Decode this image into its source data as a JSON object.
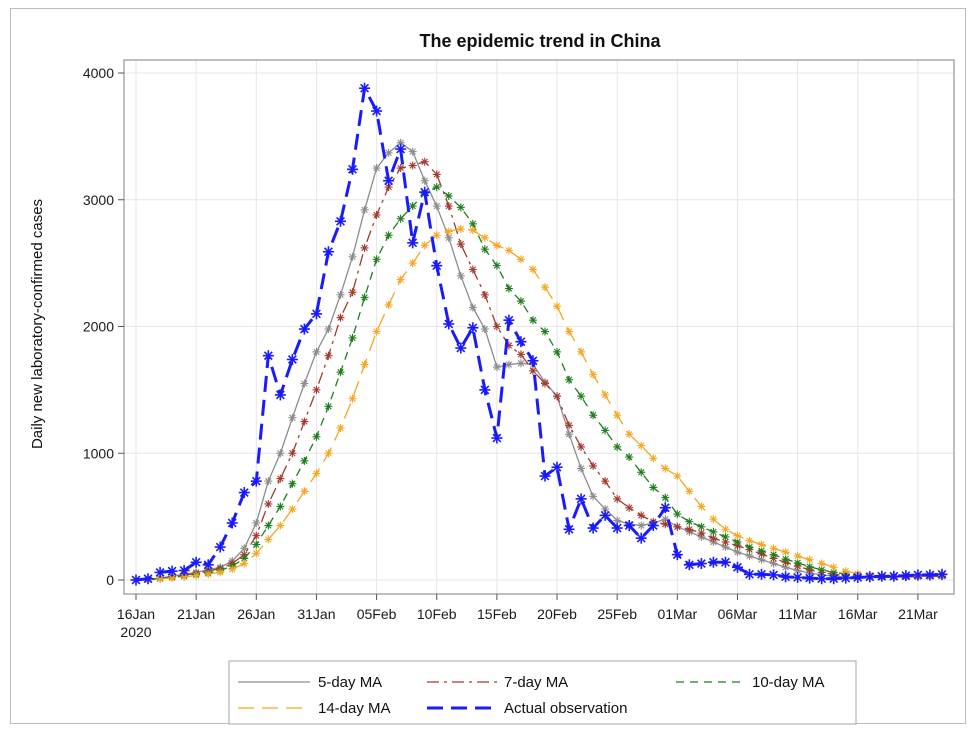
{
  "chart_data": {
    "type": "line",
    "title": "The epidemic trend in China",
    "xlabel": "",
    "ylabel": "Daily new laboratory-confirmed cases",
    "ylim": [
      0,
      4000
    ],
    "xlim": [
      "2020-01-16",
      "2020-03-24"
    ],
    "grid": true,
    "legend_position": "bottom",
    "yticks": [
      0,
      1000,
      2000,
      3000,
      4000
    ],
    "xticks": [
      {
        "date": "2020-01-16",
        "label": "16Jan",
        "sublabel": "2020"
      },
      {
        "date": "2020-01-21",
        "label": "21Jan",
        "sublabel": ""
      },
      {
        "date": "2020-01-26",
        "label": "26Jan",
        "sublabel": ""
      },
      {
        "date": "2020-01-31",
        "label": "31Jan",
        "sublabel": ""
      },
      {
        "date": "2020-02-05",
        "label": "05Feb",
        "sublabel": ""
      },
      {
        "date": "2020-02-10",
        "label": "10Feb",
        "sublabel": ""
      },
      {
        "date": "2020-02-15",
        "label": "15Feb",
        "sublabel": ""
      },
      {
        "date": "2020-02-20",
        "label": "20Feb",
        "sublabel": ""
      },
      {
        "date": "2020-02-25",
        "label": "25Feb",
        "sublabel": ""
      },
      {
        "date": "2020-03-01",
        "label": "01Mar",
        "sublabel": ""
      },
      {
        "date": "2020-03-06",
        "label": "06Mar",
        "sublabel": ""
      },
      {
        "date": "2020-03-11",
        "label": "11Mar",
        "sublabel": ""
      },
      {
        "date": "2020-03-16",
        "label": "16Mar",
        "sublabel": ""
      },
      {
        "date": "2020-03-21",
        "label": "21Mar",
        "sublabel": ""
      }
    ],
    "series": [
      {
        "name": "5-day MA",
        "color": "#8c8c8c",
        "dash": "solid",
        "width": 1.3,
        "marker": "asterisk",
        "x": [
          "2020-01-16",
          "2020-01-17",
          "2020-01-18",
          "2020-01-19",
          "2020-01-20",
          "2020-01-21",
          "2020-01-22",
          "2020-01-23",
          "2020-01-24",
          "2020-01-25",
          "2020-01-26",
          "2020-01-27",
          "2020-01-28",
          "2020-01-29",
          "2020-01-30",
          "2020-01-31",
          "2020-02-01",
          "2020-02-02",
          "2020-02-03",
          "2020-02-04",
          "2020-02-05",
          "2020-02-06",
          "2020-02-07",
          "2020-02-08",
          "2020-02-09",
          "2020-02-10",
          "2020-02-11",
          "2020-02-12",
          "2020-02-13",
          "2020-02-14",
          "2020-02-15",
          "2020-02-16",
          "2020-02-17",
          "2020-02-18",
          "2020-02-19",
          "2020-02-20",
          "2020-02-21",
          "2020-02-22",
          "2020-02-23",
          "2020-02-24",
          "2020-02-25",
          "2020-02-26",
          "2020-02-27",
          "2020-02-28",
          "2020-02-29",
          "2020-03-01",
          "2020-03-02",
          "2020-03-03",
          "2020-03-04",
          "2020-03-05",
          "2020-03-06",
          "2020-03-07",
          "2020-03-08",
          "2020-03-09",
          "2020-03-10",
          "2020-03-11",
          "2020-03-12",
          "2020-03-13",
          "2020-03-14",
          "2020-03-15",
          "2020-03-16",
          "2020-03-17",
          "2020-03-18",
          "2020-03-19",
          "2020-03-20",
          "2020-03-21",
          "2020-03-22",
          "2020-03-23"
        ],
        "y": [
          0,
          5,
          15,
          30,
          45,
          60,
          80,
          100,
          150,
          250,
          450,
          780,
          1000,
          1280,
          1550,
          1800,
          1980,
          2250,
          2550,
          2920,
          3250,
          3370,
          3450,
          3380,
          3150,
          2950,
          2700,
          2400,
          2150,
          1980,
          1680,
          1700,
          1710,
          1700,
          1560,
          1450,
          1150,
          880,
          660,
          560,
          470,
          440,
          430,
          450,
          480,
          420,
          380,
          340,
          300,
          260,
          220,
          190,
          160,
          130,
          100,
          75,
          55,
          40,
          30,
          22,
          18,
          18,
          20,
          22,
          25,
          28,
          30,
          30
        ]
      },
      {
        "name": "7-day MA",
        "color": "#a33a2e",
        "dash": "dashdot",
        "width": 1.3,
        "marker": "asterisk",
        "x": [
          "2020-01-16",
          "2020-01-17",
          "2020-01-18",
          "2020-01-19",
          "2020-01-20",
          "2020-01-21",
          "2020-01-22",
          "2020-01-23",
          "2020-01-24",
          "2020-01-25",
          "2020-01-26",
          "2020-01-27",
          "2020-01-28",
          "2020-01-29",
          "2020-01-30",
          "2020-01-31",
          "2020-02-01",
          "2020-02-02",
          "2020-02-03",
          "2020-02-04",
          "2020-02-05",
          "2020-02-06",
          "2020-02-07",
          "2020-02-08",
          "2020-02-09",
          "2020-02-10",
          "2020-02-11",
          "2020-02-12",
          "2020-02-13",
          "2020-02-14",
          "2020-02-15",
          "2020-02-16",
          "2020-02-17",
          "2020-02-18",
          "2020-02-19",
          "2020-02-20",
          "2020-02-21",
          "2020-02-22",
          "2020-02-23",
          "2020-02-24",
          "2020-02-25",
          "2020-02-26",
          "2020-02-27",
          "2020-02-28",
          "2020-02-29",
          "2020-03-01",
          "2020-03-02",
          "2020-03-03",
          "2020-03-04",
          "2020-03-05",
          "2020-03-06",
          "2020-03-07",
          "2020-03-08",
          "2020-03-09",
          "2020-03-10",
          "2020-03-11",
          "2020-03-12",
          "2020-03-13",
          "2020-03-14",
          "2020-03-15",
          "2020-03-16",
          "2020-03-17",
          "2020-03-18",
          "2020-03-19",
          "2020-03-20",
          "2020-03-21",
          "2020-03-22",
          "2020-03-23"
        ],
        "y": [
          0,
          4,
          12,
          25,
          38,
          52,
          70,
          90,
          130,
          200,
          350,
          600,
          800,
          1000,
          1250,
          1500,
          1770,
          2070,
          2270,
          2620,
          2880,
          3100,
          3250,
          3270,
          3300,
          3200,
          2950,
          2650,
          2450,
          2250,
          2000,
          1850,
          1780,
          1650,
          1550,
          1450,
          1220,
          1050,
          900,
          780,
          640,
          570,
          510,
          460,
          440,
          420,
          400,
          370,
          330,
          300,
          270,
          240,
          205,
          170,
          140,
          110,
          80,
          60,
          45,
          35,
          28,
          24,
          22,
          22,
          24,
          26,
          28,
          30
        ]
      },
      {
        "name": "10-day MA",
        "color": "#1e7d1e",
        "dash": "dash",
        "width": 1.3,
        "marker": "asterisk",
        "x": [
          "2020-01-16",
          "2020-01-17",
          "2020-01-18",
          "2020-01-19",
          "2020-01-20",
          "2020-01-21",
          "2020-01-22",
          "2020-01-23",
          "2020-01-24",
          "2020-01-25",
          "2020-01-26",
          "2020-01-27",
          "2020-01-28",
          "2020-01-29",
          "2020-01-30",
          "2020-01-31",
          "2020-02-01",
          "2020-02-02",
          "2020-02-03",
          "2020-02-04",
          "2020-02-05",
          "2020-02-06",
          "2020-02-07",
          "2020-02-08",
          "2020-02-09",
          "2020-02-10",
          "2020-02-11",
          "2020-02-12",
          "2020-02-13",
          "2020-02-14",
          "2020-02-15",
          "2020-02-16",
          "2020-02-17",
          "2020-02-18",
          "2020-02-19",
          "2020-02-20",
          "2020-02-21",
          "2020-02-22",
          "2020-02-23",
          "2020-02-24",
          "2020-02-25",
          "2020-02-26",
          "2020-02-27",
          "2020-02-28",
          "2020-02-29",
          "2020-03-01",
          "2020-03-02",
          "2020-03-03",
          "2020-03-04",
          "2020-03-05",
          "2020-03-06",
          "2020-03-07",
          "2020-03-08",
          "2020-03-09",
          "2020-03-10",
          "2020-03-11",
          "2020-03-12",
          "2020-03-13",
          "2020-03-14",
          "2020-03-15",
          "2020-03-16",
          "2020-03-17",
          "2020-03-18",
          "2020-03-19",
          "2020-03-20",
          "2020-03-21",
          "2020-03-22",
          "2020-03-23"
        ],
        "y": [
          0,
          3,
          10,
          20,
          30,
          42,
          55,
          75,
          110,
          170,
          280,
          430,
          580,
          760,
          940,
          1130,
          1370,
          1640,
          1910,
          2230,
          2530,
          2720,
          2850,
          2950,
          3050,
          3100,
          3030,
          2940,
          2810,
          2610,
          2480,
          2300,
          2200,
          2050,
          1960,
          1800,
          1580,
          1450,
          1300,
          1180,
          1050,
          970,
          850,
          730,
          650,
          520,
          460,
          420,
          380,
          340,
          300,
          260,
          230,
          200,
          165,
          135,
          105,
          80,
          60,
          48,
          38,
          32,
          28,
          28,
          30,
          32,
          34,
          34
        ]
      },
      {
        "name": "14-day MA",
        "color": "#f5a623",
        "dash": "longdash",
        "width": 1.3,
        "marker": "asterisk",
        "x": [
          "2020-01-16",
          "2020-01-17",
          "2020-01-18",
          "2020-01-19",
          "2020-01-20",
          "2020-01-21",
          "2020-01-22",
          "2020-01-23",
          "2020-01-24",
          "2020-01-25",
          "2020-01-26",
          "2020-01-27",
          "2020-01-28",
          "2020-01-29",
          "2020-01-30",
          "2020-01-31",
          "2020-02-01",
          "2020-02-02",
          "2020-02-03",
          "2020-02-04",
          "2020-02-05",
          "2020-02-06",
          "2020-02-07",
          "2020-02-08",
          "2020-02-09",
          "2020-02-10",
          "2020-02-11",
          "2020-02-12",
          "2020-02-13",
          "2020-02-14",
          "2020-02-15",
          "2020-02-16",
          "2020-02-17",
          "2020-02-18",
          "2020-02-19",
          "2020-02-20",
          "2020-02-21",
          "2020-02-22",
          "2020-02-23",
          "2020-02-24",
          "2020-02-25",
          "2020-02-26",
          "2020-02-27",
          "2020-02-28",
          "2020-02-29",
          "2020-03-01",
          "2020-03-02",
          "2020-03-03",
          "2020-03-04",
          "2020-03-05",
          "2020-03-06",
          "2020-03-07",
          "2020-03-08",
          "2020-03-09",
          "2020-03-10",
          "2020-03-11",
          "2020-03-12",
          "2020-03-13",
          "2020-03-14",
          "2020-03-15",
          "2020-03-16",
          "2020-03-17",
          "2020-03-18",
          "2020-03-19",
          "2020-03-20",
          "2020-03-21",
          "2020-03-22",
          "2020-03-23"
        ],
        "y": [
          0,
          2,
          8,
          16,
          25,
          35,
          47,
          60,
          85,
          130,
          210,
          320,
          430,
          560,
          700,
          840,
          1000,
          1200,
          1430,
          1700,
          1960,
          2170,
          2370,
          2500,
          2640,
          2720,
          2750,
          2770,
          2760,
          2700,
          2640,
          2600,
          2530,
          2450,
          2310,
          2160,
          1960,
          1800,
          1620,
          1460,
          1300,
          1150,
          1060,
          960,
          880,
          820,
          700,
          580,
          480,
          400,
          350,
          310,
          280,
          250,
          220,
          190,
          160,
          130,
          100,
          70,
          50,
          40,
          32,
          30,
          30,
          32,
          34,
          35
        ]
      },
      {
        "name": "Actual observation",
        "color": "#1a1aff",
        "dash": "longdash",
        "width": 3,
        "marker": "asterisk",
        "x": [
          "2020-01-16",
          "2020-01-17",
          "2020-01-18",
          "2020-01-19",
          "2020-01-20",
          "2020-01-21",
          "2020-01-22",
          "2020-01-23",
          "2020-01-24",
          "2020-01-25",
          "2020-01-26",
          "2020-01-27",
          "2020-01-28",
          "2020-01-29",
          "2020-01-30",
          "2020-01-31",
          "2020-02-01",
          "2020-02-02",
          "2020-02-03",
          "2020-02-04",
          "2020-02-05",
          "2020-02-06",
          "2020-02-07",
          "2020-02-08",
          "2020-02-09",
          "2020-02-10",
          "2020-02-11",
          "2020-02-12",
          "2020-02-13",
          "2020-02-14",
          "2020-02-15",
          "2020-02-16",
          "2020-02-17",
          "2020-02-18",
          "2020-02-19",
          "2020-02-20",
          "2020-02-21",
          "2020-02-22",
          "2020-02-23",
          "2020-02-24",
          "2020-02-25",
          "2020-02-26",
          "2020-02-27",
          "2020-02-28",
          "2020-02-29",
          "2020-03-01",
          "2020-03-02",
          "2020-03-03",
          "2020-03-04",
          "2020-03-05",
          "2020-03-06",
          "2020-03-07",
          "2020-03-08",
          "2020-03-09",
          "2020-03-10",
          "2020-03-11",
          "2020-03-12",
          "2020-03-13",
          "2020-03-14",
          "2020-03-15",
          "2020-03-16",
          "2020-03-17",
          "2020-03-18",
          "2020-03-19",
          "2020-03-20",
          "2020-03-21",
          "2020-03-22",
          "2020-03-23"
        ],
        "y": [
          0,
          10,
          60,
          70,
          75,
          140,
          120,
          260,
          450,
          690,
          780,
          1770,
          1460,
          1740,
          1980,
          2100,
          2590,
          2830,
          3240,
          3880,
          3700,
          3150,
          3400,
          2660,
          3060,
          2480,
          2020,
          1830,
          1990,
          1500,
          1120,
          2050,
          1880,
          1730,
          820,
          890,
          400,
          640,
          410,
          510,
          410,
          430,
          330,
          430,
          570,
          200,
          120,
          130,
          140,
          140,
          100,
          45,
          45,
          40,
          25,
          20,
          15,
          10,
          10,
          15,
          20,
          25,
          30,
          30,
          35,
          40,
          40,
          45
        ]
      }
    ],
    "legend": [
      {
        "label": "5-day MA",
        "series": 0
      },
      {
        "label": "7-day MA",
        "series": 1
      },
      {
        "label": "10-day MA",
        "series": 2
      },
      {
        "label": "14-day MA",
        "series": 3
      },
      {
        "label": "Actual observation",
        "series": 4
      }
    ]
  }
}
